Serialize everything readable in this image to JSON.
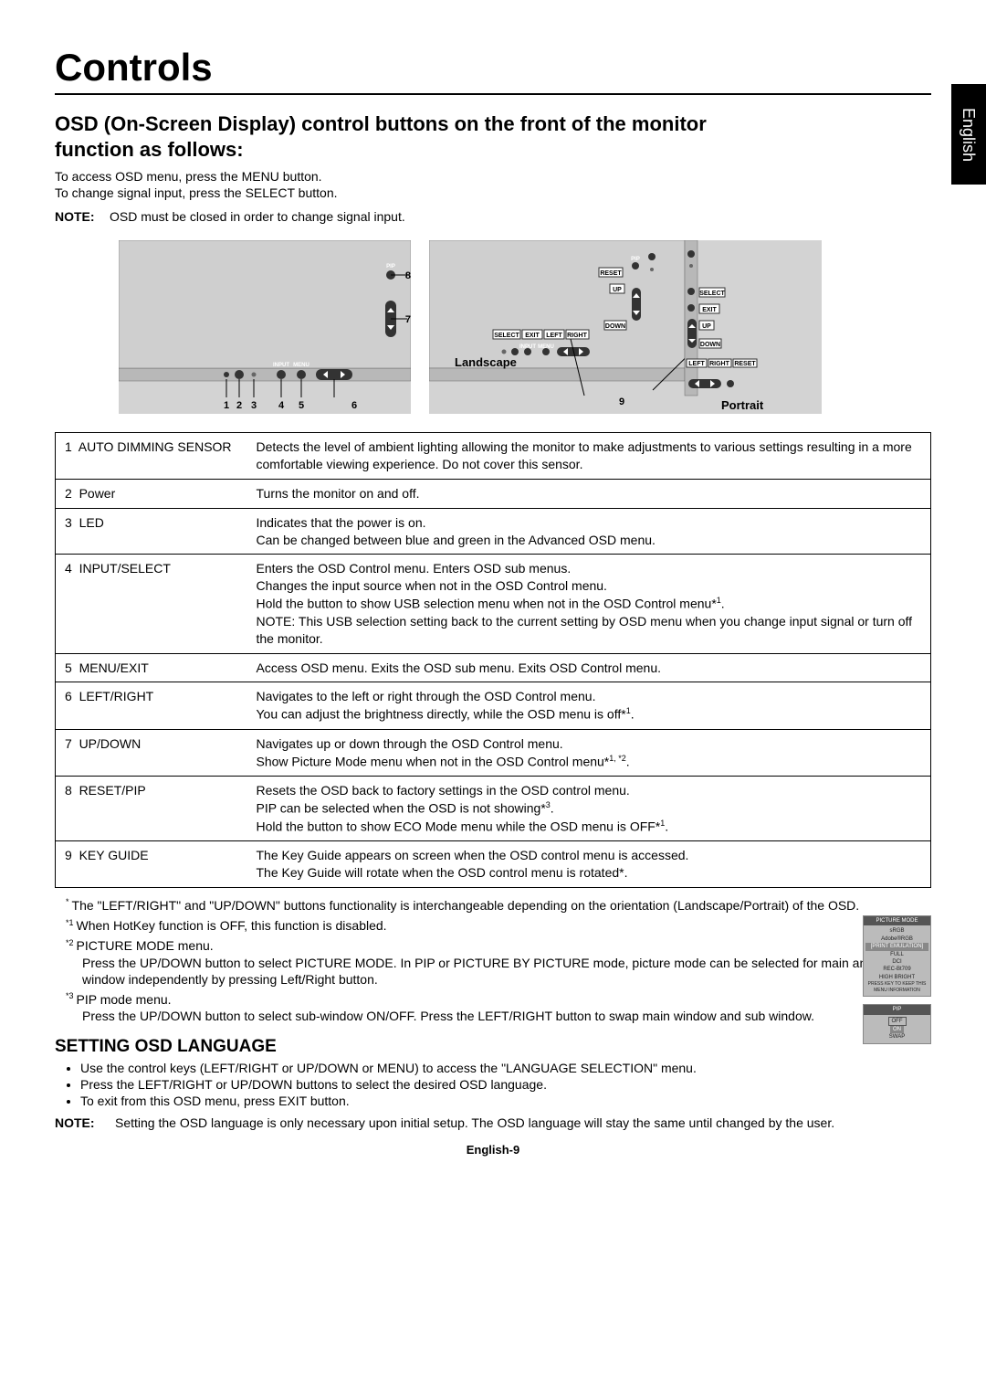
{
  "page": {
    "title": "Controls",
    "side_tab": "English",
    "footer": "English-9"
  },
  "intro": {
    "heading_l1": "OSD (On-Screen Display) control buttons on the front of the monitor",
    "heading_l2": "function as follows:",
    "p1": "To access OSD menu, press the MENU button.",
    "p2": "To change signal input, press the SELECT button.",
    "note_label": "NOTE:",
    "note_text": "OSD must be closed in order to change signal input."
  },
  "diagram": {
    "landscape_label": "Landscape",
    "portrait_label": "Portrait",
    "left_nums": [
      "1",
      "2",
      "3",
      "4",
      "5",
      "6",
      "7",
      "8"
    ],
    "right_num": "9",
    "btn_labels": {
      "input": "INPUT",
      "menu": "MENU",
      "pip": "PIP",
      "reset": "RESET",
      "select": "SELECT",
      "exit": "EXIT",
      "left": "LEFT",
      "right": "RIGHT",
      "up": "UP",
      "down": "DOWN"
    }
  },
  "table": {
    "rows": [
      {
        "n": "1",
        "name": "AUTO DIMMING SENSOR",
        "desc": "Detects the level of ambient lighting allowing the monitor to make adjustments to various settings resulting in a more comfortable viewing experience. Do not cover this sensor."
      },
      {
        "n": "2",
        "name": "Power",
        "desc": "Turns the monitor on and off."
      },
      {
        "n": "3",
        "name": "LED",
        "desc": "Indicates that the power is on.\nCan be changed between blue and green in the Advanced OSD menu."
      },
      {
        "n": "4",
        "name": "INPUT/SELECT",
        "desc": "Enters the OSD Control menu. Enters OSD sub menus.\nChanges the input source when not in the OSD Control menu.\nHold the button to show USB selection menu when not in the OSD Control menu*¹.\nNOTE: This USB selection setting back to the current setting by OSD menu when you change input signal or turn off the monitor."
      },
      {
        "n": "5",
        "name": "MENU/EXIT",
        "desc": "Access OSD menu. Exits the OSD sub menu. Exits OSD Control menu."
      },
      {
        "n": "6",
        "name": "LEFT/RIGHT",
        "desc": "Navigates to the left or right through the OSD Control menu.\nYou can adjust the brightness directly, while the OSD menu is off*¹."
      },
      {
        "n": "7",
        "name": "UP/DOWN",
        "desc": "Navigates up or down through the OSD Control menu.\nShow Picture Mode menu when not in the OSD Control menu*¹·*²."
      },
      {
        "n": "8",
        "name": "RESET/PIP",
        "desc": "Resets the OSD back to factory settings in the OSD control menu.\nPIP can be selected when the OSD is not showing*³.\nHold the button to show ECO Mode menu while the OSD menu is OFF*¹."
      },
      {
        "n": "9",
        "name": "KEY GUIDE",
        "desc": "The Key Guide appears on screen when the OSD control menu is accessed.\nThe Key Guide will rotate when the OSD control menu is rotated*."
      }
    ]
  },
  "footnotes": {
    "f0": "The \"LEFT/RIGHT\" and \"UP/DOWN\" buttons functionality is interchangeable depending on the orientation (Landscape/Portrait) of the OSD.",
    "f1": "When HotKey function is OFF, this function is disabled.",
    "f2a": "PICTURE MODE menu.",
    "f2b": "Press the UP/DOWN button to select PICTURE MODE. In PIP or PICTURE BY PICTURE mode, picture mode can be selected for main and sub window independently by pressing Left/Right button.",
    "f3a": "PIP mode menu.",
    "f3b": "Press the UP/DOWN button to select sub-window ON/OFF. Press the LEFT/RIGHT button to swap main window and sub window."
  },
  "settings": {
    "heading": "SETTING OSD LANGUAGE",
    "b1": "Use the control keys (LEFT/RIGHT or UP/DOWN or MENU) to access the \"LANGUAGE SELECTION\" menu.",
    "b2": "Press the LEFT/RIGHT or UP/DOWN buttons to select the desired OSD language.",
    "b3": "To exit from this OSD menu, press EXIT button.",
    "note_label": "NOTE:",
    "note_text": "Setting the OSD language is only necessary upon initial setup. The OSD language will stay the same until changed by the user."
  },
  "mini_menus": {
    "pm_title": "PICTURE MODE",
    "pm_items": [
      "sRGB",
      "Adobe®RGB",
      "[PRINT EMULATION]",
      "FULL",
      "DCI",
      "REC-Bt709",
      "HIGH BRIGHT"
    ],
    "pm_foot": "PRESS KEY TO KEEP THIS\nMENU  INFORMATION",
    "pip_title": "PIP",
    "pip_off": "OFF",
    "pip_on": "ON",
    "pip_swap": "SWAP"
  }
}
